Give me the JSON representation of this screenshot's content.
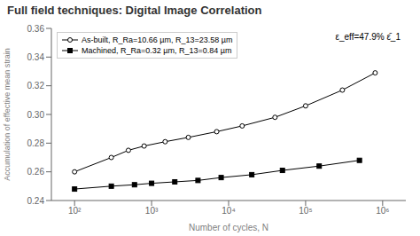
{
  "chart_data": {
    "type": "line",
    "title": "Full field techniques: Digital Image Correlation",
    "x_label": "Number of cycles, N",
    "y_label": "Accumulation of effective mean strain",
    "annotations": [
      "ε_eff=47.9% ε̄_1"
    ],
    "log": "x",
    "grid": false,
    "legend": "upper left",
    "xlim": [
      50,
      2000000
    ],
    "xticks": [
      {
        "value": 100,
        "label": "10²"
      },
      {
        "value": 1000,
        "label": "10³"
      },
      {
        "value": 10000,
        "label": "10⁴"
      },
      {
        "value": 100000,
        "label": "10⁵"
      },
      {
        "value": 1000000,
        "label": "10⁶"
      }
    ],
    "ylim": [
      0.24,
      0.36
    ],
    "yticks": [
      0.24,
      0.26,
      0.28,
      {
        "value": 0.3,
        "label": "0.30"
      },
      0.32,
      0.34,
      0.36
    ],
    "series": [
      {
        "name": "As-built, R_Ra=10.66 µm, R_13=23.58 µm",
        "color": "#000000",
        "marker": "open_circle",
        "line_style": "solid",
        "x": [
          100,
          300,
          500,
          800,
          1500,
          3000,
          7000,
          15000,
          40000,
          100000,
          300000,
          800000
        ],
        "values": [
          0.26,
          0.27,
          0.275,
          0.278,
          0.281,
          0.284,
          0.288,
          0.292,
          0.298,
          0.306,
          0.317,
          0.329
        ]
      },
      {
        "name": "Machined, R_Ra=0.32 µm, R_13=0.84 µm",
        "color": "#000000",
        "marker": "square",
        "line_style": "solid",
        "x": [
          100,
          300,
          600,
          1000,
          2000,
          4000,
          8000,
          20000,
          50000,
          150000,
          500000
        ],
        "values": [
          0.248,
          0.25,
          0.251,
          0.252,
          0.253,
          0.254,
          0.256,
          0.258,
          0.261,
          0.264,
          0.268
        ]
      }
    ]
  }
}
